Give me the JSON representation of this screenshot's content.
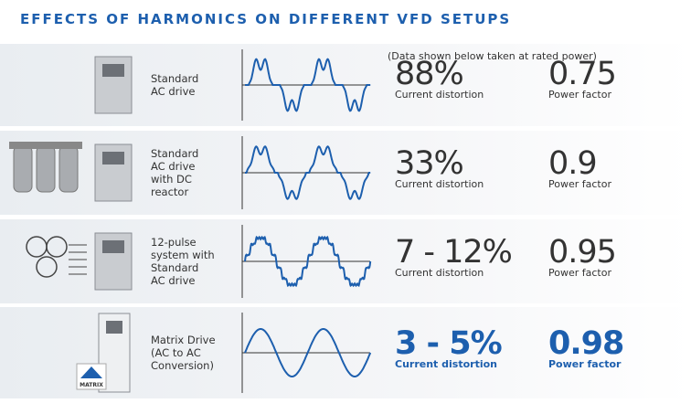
{
  "header": {
    "title": "EFFECTS OF HARMONICS ON DIFFERENT VFD SETUPS",
    "note": "(Data shown below taken at rated power)"
  },
  "rows": [
    {
      "label": [
        "Standard",
        "AC drive"
      ],
      "distortion": "88%",
      "distortion_label": "Current distortion",
      "power_factor": "0.75",
      "power_factor_label": "Power factor"
    },
    {
      "label": [
        "Standard",
        "AC drive",
        "with DC",
        "reactor"
      ],
      "distortion": "33%",
      "distortion_label": "Current distortion",
      "power_factor": "0.9",
      "power_factor_label": "Power factor"
    },
    {
      "label": [
        "12-pulse",
        "system with",
        "Standard",
        "AC drive"
      ],
      "distortion": "7 - 12%",
      "distortion_label": "Current distortion",
      "power_factor": "0.95",
      "power_factor_label": "Power factor"
    },
    {
      "label": [
        "Matrix Drive",
        "(AC to AC",
        "Conversion)"
      ],
      "distortion": "3 - 5%",
      "distortion_label": "Current distortion",
      "power_factor": "0.98",
      "power_factor_label": "Power factor",
      "icon_text": "MATRIX"
    }
  ]
}
